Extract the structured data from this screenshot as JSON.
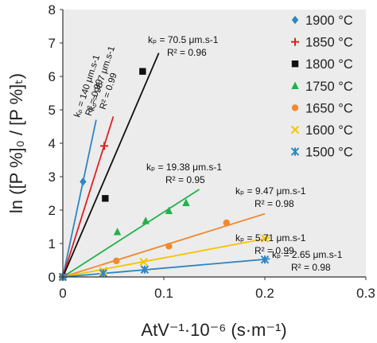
{
  "chart_data": {
    "type": "scatter",
    "xlabel": "AtV⁻¹·10⁻⁶ (s·m⁻¹)",
    "ylabel": "ln ([P %]₀ / [P %]ₜ)",
    "xlim": [
      0,
      0.3
    ],
    "ylim": [
      0,
      8
    ],
    "xticks": [
      "0",
      "0.1",
      "0.2",
      "0.3"
    ],
    "yticks": [
      "0",
      "1",
      "2",
      "3",
      "4",
      "5",
      "6",
      "7",
      "8"
    ],
    "grid": false,
    "legend_position": "top-right",
    "series": [
      {
        "name": "1900 °C",
        "color": "#2e86c1",
        "marker": "diamond",
        "points": [
          [
            0,
            0
          ],
          [
            0.02,
            2.85
          ]
        ],
        "fit": [
          [
            0,
            0
          ],
          [
            0.033,
            4.7
          ]
        ],
        "label": {
          "k": "kₚ = 140 μm.s-1",
          "r2": "R² = 0.99"
        }
      },
      {
        "name": "1850 °C",
        "color": "#e02020",
        "marker": "plus",
        "points": [
          [
            0,
            0
          ],
          [
            0.041,
            3.92
          ]
        ],
        "fit": [
          [
            0,
            0
          ],
          [
            0.05,
            4.8
          ]
        ],
        "label": {
          "k": "kₚ = 98.7 μm.s-1",
          "r2": "R² = 0.99"
        }
      },
      {
        "name": "1800 °C",
        "color": "#111111",
        "marker": "square",
        "points": [
          [
            0,
            0
          ],
          [
            0.042,
            2.35
          ],
          [
            0.079,
            6.15
          ]
        ],
        "fit": [
          [
            0,
            0
          ],
          [
            0.095,
            6.7
          ]
        ],
        "label": {
          "k": "kₚ = 70.5 μm.s-1",
          "r2": "R² = 0.96"
        }
      },
      {
        "name": "1750 °C",
        "color": "#22b14c",
        "marker": "triangle",
        "points": [
          [
            0,
            0
          ],
          [
            0.054,
            1.35
          ],
          [
            0.082,
            1.68
          ],
          [
            0.105,
            1.98
          ],
          [
            0.122,
            2.22
          ]
        ],
        "fit": [
          [
            0,
            0
          ],
          [
            0.135,
            2.62
          ]
        ],
        "label": {
          "k": "kₚ = 19.38 μm.s-1",
          "r2": "R² = 0.95"
        }
      },
      {
        "name": "1650 °C",
        "color": "#f08a30",
        "marker": "circle",
        "points": [
          [
            0,
            0
          ],
          [
            0.053,
            0.48
          ],
          [
            0.105,
            0.92
          ],
          [
            0.162,
            1.62
          ]
        ],
        "fit": [
          [
            0,
            0
          ],
          [
            0.2,
            1.89
          ]
        ],
        "label": {
          "k": "kₚ = 9.47 μm.s-1",
          "r2": "R² = 0.98"
        }
      },
      {
        "name": "1600 °C",
        "color": "#f5c400",
        "marker": "x",
        "points": [
          [
            0,
            0
          ],
          [
            0.04,
            0.18
          ],
          [
            0.08,
            0.45
          ],
          [
            0.2,
            1.15
          ]
        ],
        "fit": [
          [
            0,
            0
          ],
          [
            0.205,
            1.17
          ]
        ],
        "label": {
          "k": "kₚ = 5.71 μm.s-1",
          "r2": "R² = 0.99"
        }
      },
      {
        "name": "1500 °C",
        "color": "#2e86c1",
        "marker": "asterisk",
        "points": [
          [
            0,
            0
          ],
          [
            0.04,
            0.11
          ],
          [
            0.081,
            0.22
          ],
          [
            0.2,
            0.52
          ]
        ],
        "fit": [
          [
            0,
            0
          ],
          [
            0.205,
            0.54
          ]
        ],
        "label": {
          "k": "kₚ = 2.65 μm.s-1",
          "r2": "R² = 0.98"
        }
      }
    ]
  }
}
